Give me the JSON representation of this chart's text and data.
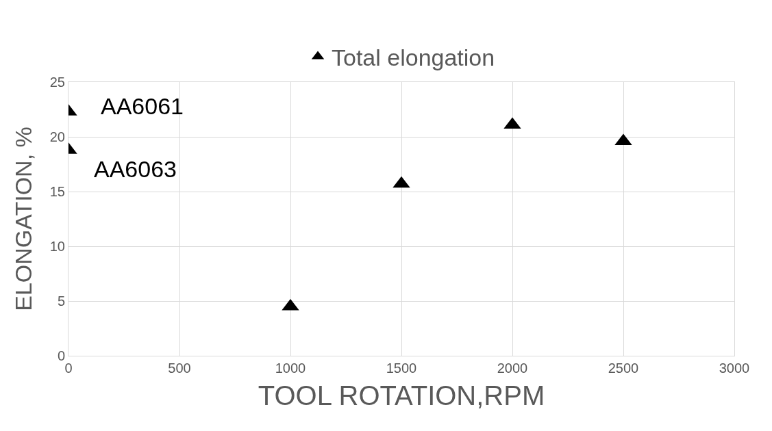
{
  "chart_data": {
    "type": "scatter",
    "xlabel": "TOOL ROTATION,RPM",
    "ylabel": "ELONGATION, %",
    "x": [
      0,
      0,
      1000,
      1500,
      2000,
      2500
    ],
    "series": [
      {
        "name": "Total elongation",
        "color": "#000000",
        "values": [
          22.3,
          18.8,
          4.5,
          15.7,
          21.1,
          19.6
        ]
      }
    ],
    "xlim": [
      0,
      3000
    ],
    "xticks": [
      0,
      500,
      1000,
      1500,
      2000,
      2500,
      3000
    ],
    "ylim": [
      0,
      25
    ],
    "yticks": [
      0,
      5,
      10,
      15,
      20,
      25
    ],
    "grid": true,
    "legend": "top",
    "marker": "triangle",
    "annotations": [
      {
        "text": "AA6061",
        "x": 0,
        "y": 22.3
      },
      {
        "text": "AA6063",
        "x": 0,
        "y": 18.8
      }
    ]
  }
}
